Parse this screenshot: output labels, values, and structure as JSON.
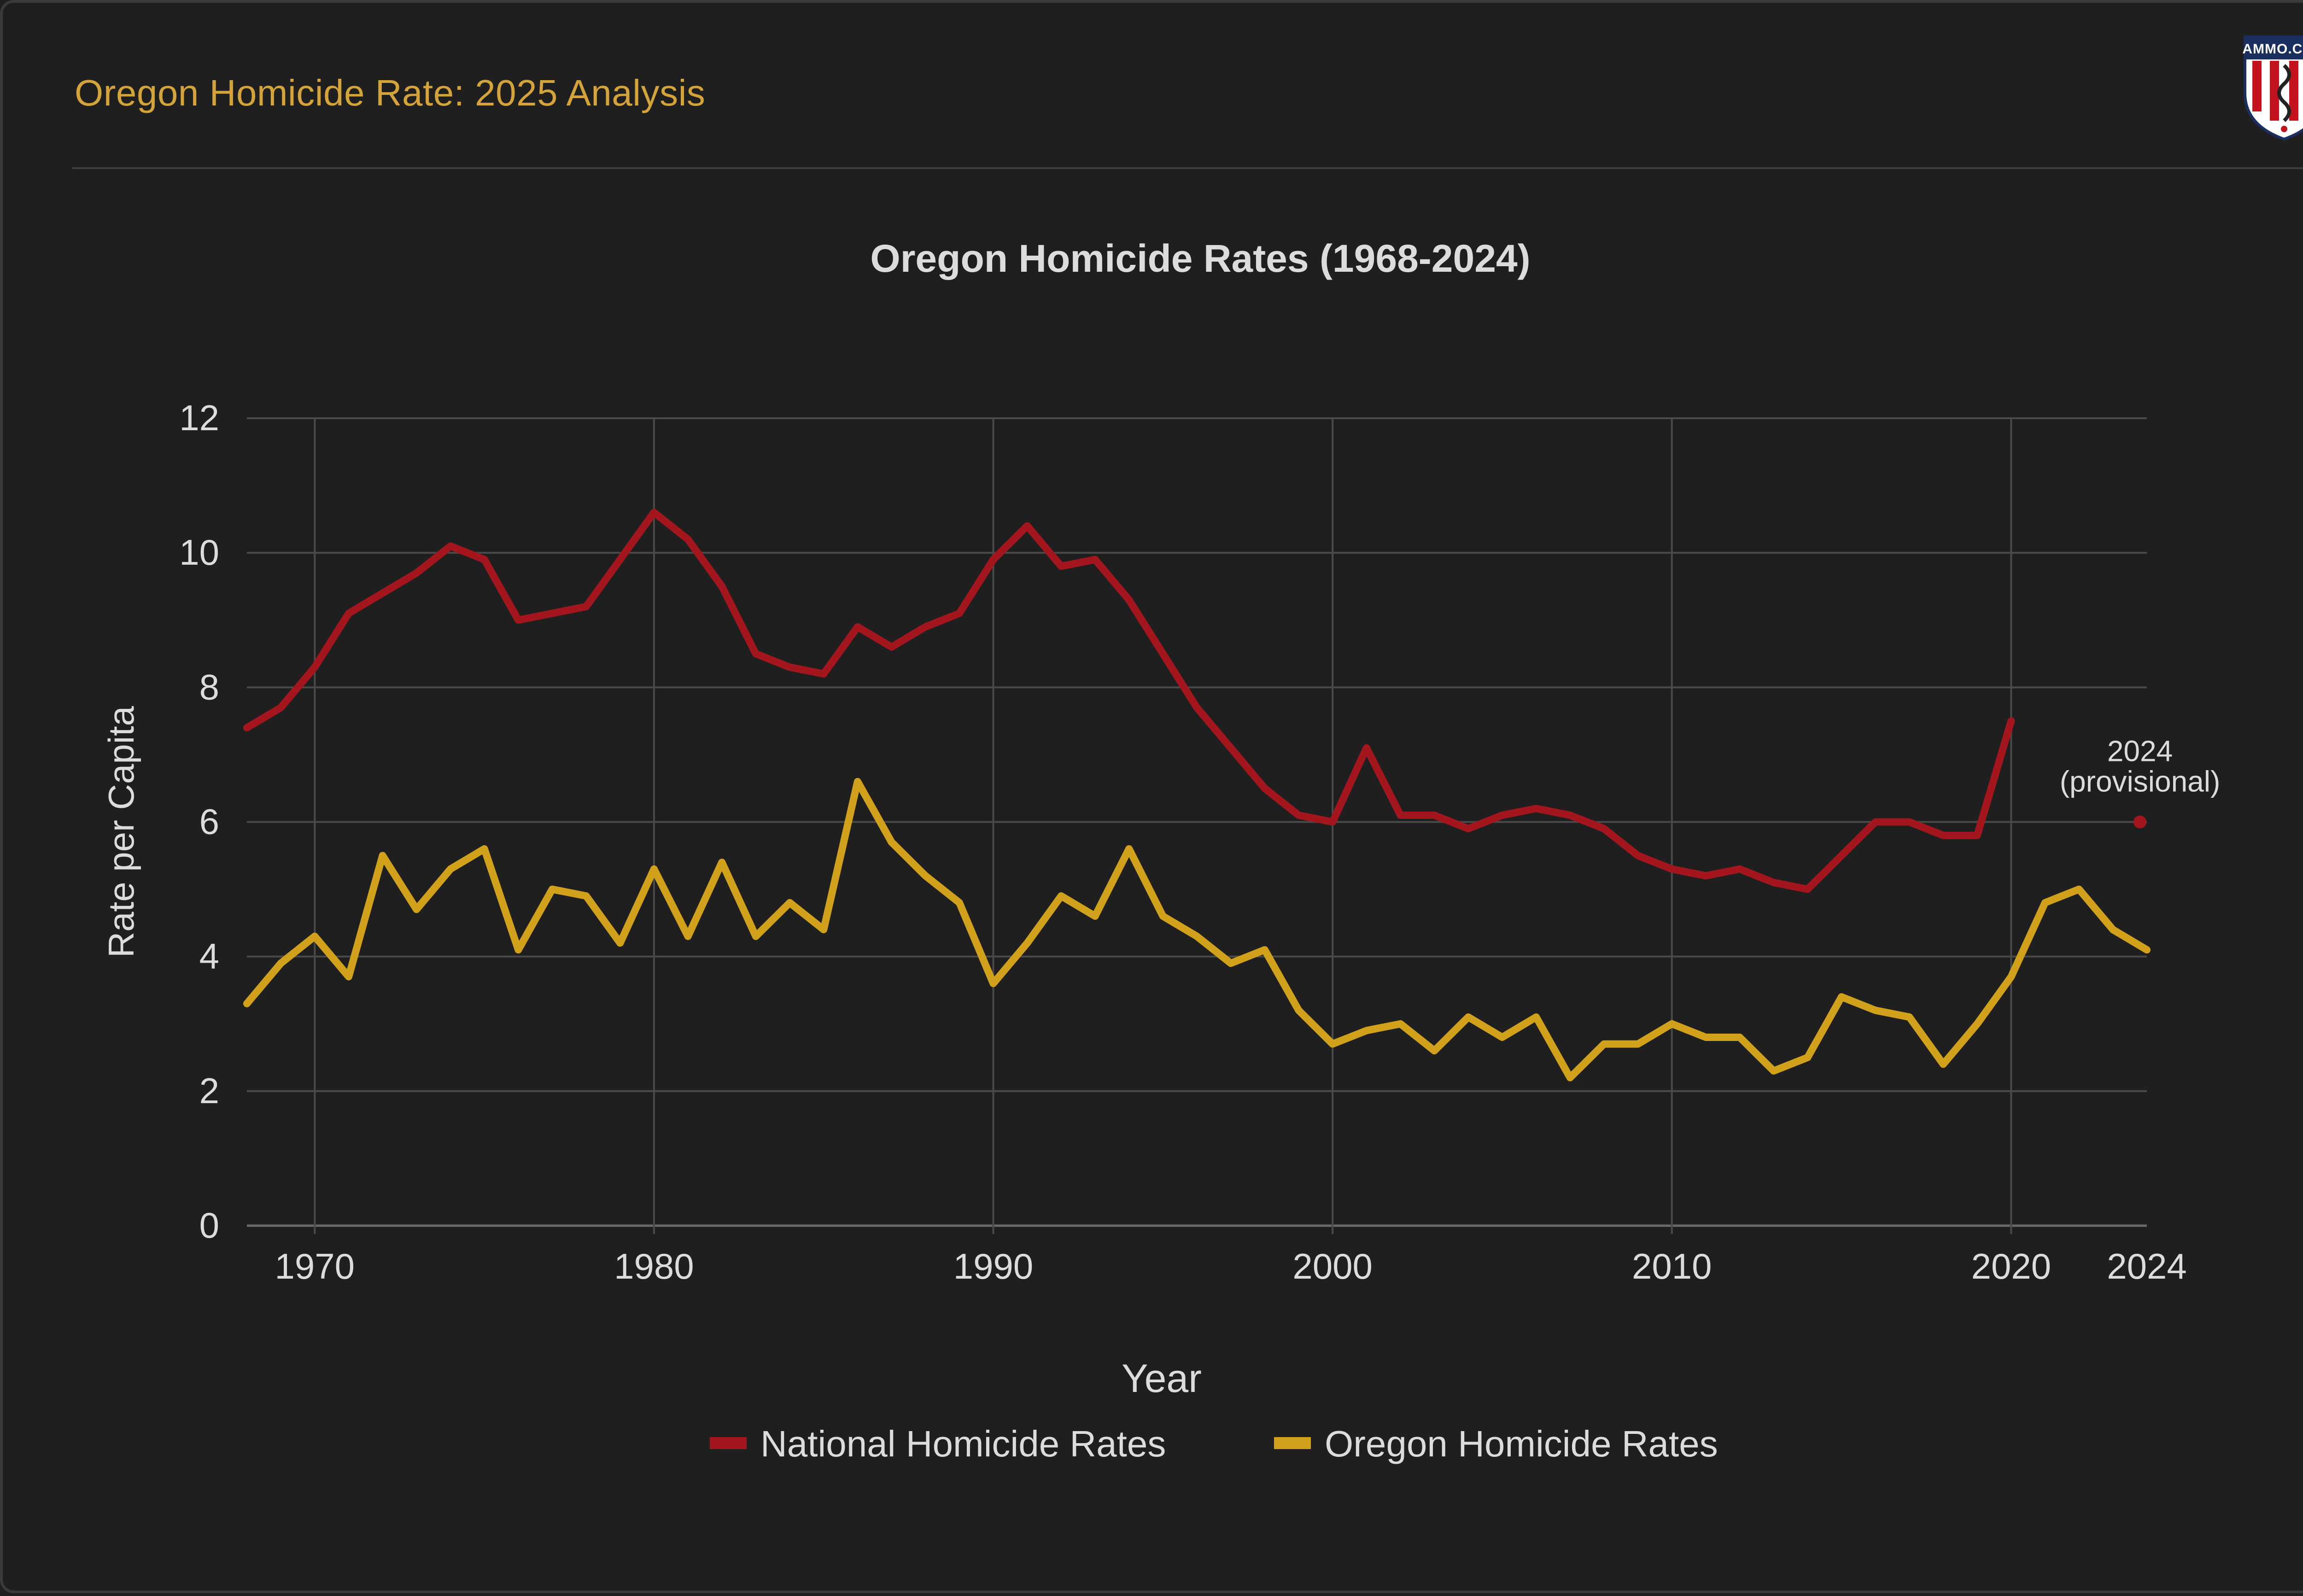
{
  "header": {
    "title": "Oregon Homicide Rate: 2025 Analysis",
    "logo_text": "AMMO.COM"
  },
  "colors": {
    "background": "#1f1f1f",
    "accent_gold": "#d4a43a",
    "national_line": "#a3161d",
    "oregon_line": "#d1a11b",
    "grid": "#4a4a4a",
    "text_light": "#dcdcdc"
  },
  "chart_data": {
    "type": "line",
    "title": "Oregon Homicide Rates (1968-2024)",
    "xlabel": "Year",
    "ylabel": "Rate per Capita",
    "xlim": [
      1968,
      2024
    ],
    "ylim": [
      0,
      12
    ],
    "x_ticks": [
      1970,
      1980,
      1990,
      2000,
      2010,
      2020,
      2024
    ],
    "y_ticks": [
      0,
      2,
      4,
      6,
      8,
      10,
      12
    ],
    "grid": true,
    "legend_position": "bottom",
    "series": [
      {
        "name": "National Homicide Rates",
        "color": "#a3161d",
        "x": [
          1968,
          1969,
          1970,
          1971,
          1972,
          1973,
          1974,
          1975,
          1976,
          1977,
          1978,
          1979,
          1980,
          1981,
          1982,
          1983,
          1984,
          1985,
          1986,
          1987,
          1988,
          1989,
          1990,
          1991,
          1992,
          1993,
          1994,
          1995,
          1996,
          1997,
          1998,
          1999,
          2000,
          2001,
          2002,
          2003,
          2004,
          2005,
          2006,
          2007,
          2008,
          2009,
          2010,
          2011,
          2012,
          2013,
          2014,
          2015,
          2016,
          2017,
          2018,
          2019,
          2020
        ],
        "y": [
          7.4,
          7.7,
          8.3,
          9.1,
          9.4,
          9.7,
          10.1,
          9.9,
          9.0,
          9.1,
          9.2,
          9.9,
          10.6,
          10.2,
          9.5,
          8.5,
          8.3,
          8.2,
          8.9,
          8.6,
          8.9,
          9.1,
          9.9,
          10.4,
          9.8,
          9.9,
          9.3,
          8.5,
          7.7,
          7.1,
          6.5,
          6.1,
          6.0,
          7.1,
          6.1,
          6.1,
          5.9,
          6.1,
          6.2,
          6.1,
          5.9,
          5.5,
          5.3,
          5.2,
          5.3,
          5.1,
          5.0,
          5.5,
          6.0,
          6.0,
          5.8,
          5.8,
          7.5
        ]
      },
      {
        "name": "Oregon Homicide Rates",
        "color": "#d1a11b",
        "x": [
          1968,
          1969,
          1970,
          1971,
          1972,
          1973,
          1974,
          1975,
          1976,
          1977,
          1978,
          1979,
          1980,
          1981,
          1982,
          1983,
          1984,
          1985,
          1986,
          1987,
          1988,
          1989,
          1990,
          1991,
          1992,
          1993,
          1994,
          1995,
          1996,
          1997,
          1998,
          1999,
          2000,
          2001,
          2002,
          2003,
          2004,
          2005,
          2006,
          2007,
          2008,
          2009,
          2010,
          2011,
          2012,
          2013,
          2014,
          2015,
          2016,
          2017,
          2018,
          2019,
          2020,
          2021,
          2022,
          2023,
          2024
        ],
        "y": [
          3.3,
          3.9,
          4.3,
          3.7,
          5.5,
          4.7,
          5.3,
          5.6,
          4.1,
          5.0,
          4.9,
          4.2,
          5.3,
          4.3,
          5.4,
          4.3,
          4.8,
          4.4,
          6.6,
          5.7,
          5.2,
          4.8,
          3.6,
          4.2,
          4.9,
          4.6,
          5.6,
          4.6,
          4.3,
          3.9,
          4.1,
          3.2,
          2.7,
          2.9,
          3.0,
          2.6,
          3.1,
          2.8,
          3.1,
          2.2,
          2.7,
          2.7,
          3.0,
          2.8,
          2.8,
          2.3,
          2.5,
          3.4,
          3.2,
          3.1,
          2.4,
          3.0,
          3.7,
          4.8,
          5.0,
          4.4,
          4.1
        ]
      }
    ],
    "annotation": {
      "x": 2024,
      "y": 6.0,
      "text_line1": "2024",
      "text_line2": "(provisional)",
      "color": "#a3161d"
    }
  }
}
